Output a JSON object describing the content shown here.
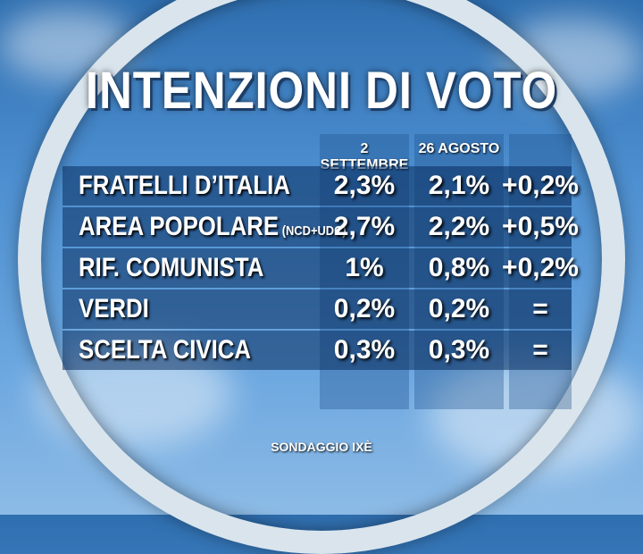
{
  "title": "INTENZIONI DI VOTO",
  "chart_data": {
    "type": "table",
    "columns": [
      "2 SETTEMBRE",
      "26 AGOSTO",
      ""
    ],
    "rows": [
      {
        "name": "FRATELLI D’ITALIA",
        "sub": "",
        "values": [
          "2,3%",
          "2,1%",
          "+0,2%"
        ]
      },
      {
        "name": "AREA POPOLARE",
        "sub": "(NCD+UDC)",
        "values": [
          "2,7%",
          "2,2%",
          "+0,5%"
        ]
      },
      {
        "name": "RIF. COMUNISTA",
        "sub": "",
        "values": [
          "1%",
          "0,8%",
          "+0,2%"
        ]
      },
      {
        "name": "VERDI",
        "sub": "",
        "values": [
          "0,2%",
          "0,2%",
          "="
        ]
      },
      {
        "name": "SCELTA CIVICA",
        "sub": "",
        "values": [
          "0,3%",
          "0,3%",
          "="
        ]
      }
    ],
    "series": [
      {
        "name": "2 SETTEMBRE",
        "values": [
          2.3,
          2.7,
          1.0,
          0.2,
          0.3
        ]
      },
      {
        "name": "26 AGOSTO",
        "values": [
          2.1,
          2.2,
          0.8,
          0.2,
          0.3
        ]
      }
    ]
  },
  "footer": {
    "title": "SONDAGGIO IXÈ"
  }
}
